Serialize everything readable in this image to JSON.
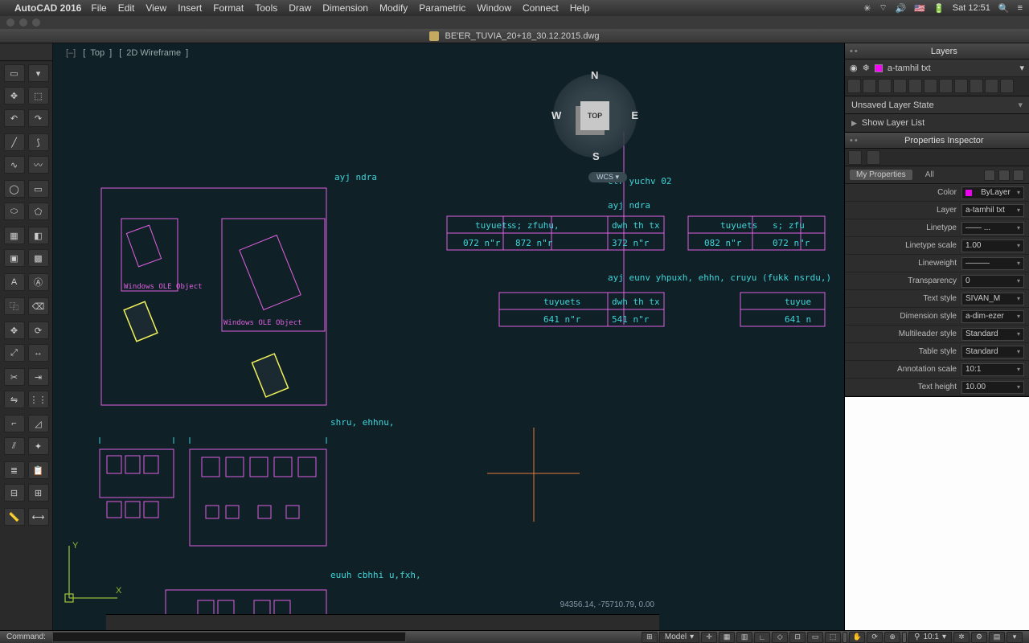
{
  "os": {
    "app_name": "AutoCAD 2016",
    "menus": [
      "File",
      "Edit",
      "View",
      "Insert",
      "Format",
      "Tools",
      "Draw",
      "Dimension",
      "Modify",
      "Parametric",
      "Window",
      "Connect",
      "Help"
    ],
    "status_right": [
      "✻",
      "⏚",
      "◀))",
      "🇺🇸",
      "⚡",
      "Sat 12:51",
      "🔍",
      "☰"
    ],
    "clock": "Sat 12:51"
  },
  "window": {
    "title": "BE'ER_TUVIA_20+18_30.12.2015.dwg"
  },
  "view": {
    "crumb_top": "Top",
    "crumb_mode": "2D Wireframe",
    "cube_label": "TOP",
    "dir_n": "N",
    "dir_s": "S",
    "dir_e": "E",
    "dir_w": "W",
    "wcs_label": "WCS  ▾",
    "coords": "94356.14, -75710.79, 0.00"
  },
  "layers": {
    "panel_title": "Layers",
    "current_name": "a-tamhil txt",
    "state": "Unsaved Layer State",
    "show_list": "Show Layer List"
  },
  "props": {
    "panel_title": "Properties Inspector",
    "tab_my": "My Properties",
    "tab_all": "All",
    "rows": [
      {
        "label": "Color",
        "value": "ByLayer",
        "swatch": "#f000f0"
      },
      {
        "label": "Layer",
        "value": "a-tamhil txt"
      },
      {
        "label": "Linetype",
        "value": "——   ..."
      },
      {
        "label": "Linetype scale",
        "value": "1.00"
      },
      {
        "label": "Lineweight",
        "value": "———"
      },
      {
        "label": "Transparency",
        "value": "0"
      },
      {
        "label": "Text style",
        "value": "SIVAN_M"
      },
      {
        "label": "Dimension style",
        "value": "a-dim-ezer"
      },
      {
        "label": "Multileader style",
        "value": "Standard"
      },
      {
        "label": "Table style",
        "value": "Standard"
      },
      {
        "label": "Annotation scale",
        "value": "10:1"
      },
      {
        "label": "Text height",
        "value": "10.00"
      }
    ]
  },
  "drawing": {
    "colors": {
      "magenta": "#e060e0",
      "cyan": "#3fd4d8",
      "yellow": "#f2f25a",
      "cross": "#e67a3a",
      "axis": "#98b93a",
      "bg": "#0f2027"
    },
    "labels": {
      "ayj_ndra_1": "ayj ndra",
      "ctr": "ctr  yuchv 02",
      "ayj_ndra_2": "ayj ndra",
      "eunv": "ayj eunv yhpuxh, ehhn, cruyu (fukk nsrdu,)",
      "ole": "Windows OLE Object",
      "ole2": "Windows OLE Object",
      "shru": "shru, ehhnu,",
      "euuh": "euuh cbhhi u,fxh,",
      "tuyuets": "tuyuets",
      "sz": "s; zfuhu,",
      "dwhtx": "dwh th tx",
      "v072": "072 n\"r",
      "v872": "872 n\"r",
      "v372": "372 n\"r",
      "v082": "082 n\"r",
      "v072b": "072 n\"r",
      "v641": "641 n\"r",
      "v541": "541 n\"r",
      "v641b": "641 n"
    }
  },
  "cmd": {
    "label": "Command:",
    "value": ""
  },
  "status": {
    "model": "Model",
    "scale": "10:1"
  }
}
